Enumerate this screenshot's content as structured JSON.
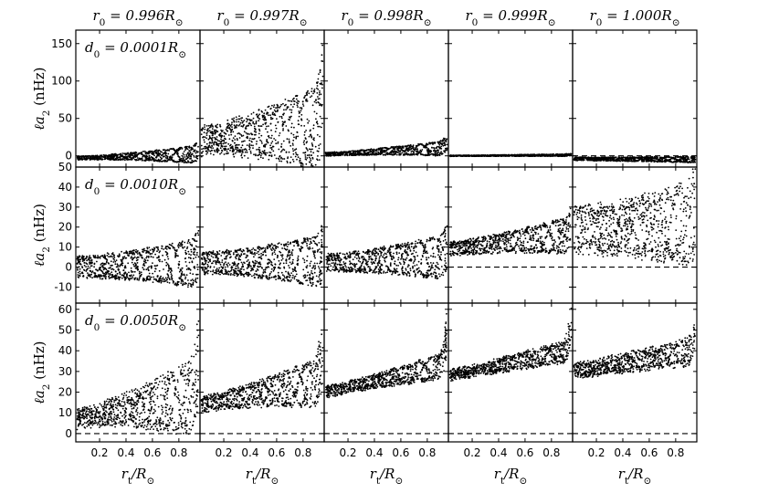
{
  "chart_data": {
    "type": "scatter",
    "layout": "3 rows x 5 columns grid of scatter panels",
    "columns": [
      {
        "title": "r_0 = 0.996R_⊙",
        "r0": 0.996
      },
      {
        "title": "r_0 = 0.997R_⊙",
        "r0": 0.997
      },
      {
        "title": "r_0 = 0.998R_⊙",
        "r0": 0.998
      },
      {
        "title": "r_0 = 0.999R_⊙",
        "r0": 0.999
      },
      {
        "title": "r_0 = 1.000R_⊙",
        "r0": 1.0
      }
    ],
    "rows": [
      {
        "annotation": "d_0 = 0.0001R_⊙",
        "d0": 0.0001,
        "ylabel": "ℓa_2 (nHz)",
        "ylim": [
          -15,
          168
        ],
        "yticks": [
          0,
          50,
          100,
          150
        ]
      },
      {
        "annotation": "d_0 = 0.0010R_⊙",
        "d0": 0.001,
        "ylabel": "ℓa_2 (nHz)",
        "ylim": [
          -18,
          50
        ],
        "yticks": [
          -10,
          0,
          10,
          20,
          30,
          40,
          50
        ]
      },
      {
        "annotation": "d_0 = 0.0050R_⊙",
        "d0": 0.005,
        "ylabel": "ℓa_2 (nHz)",
        "ylim": [
          -4,
          63
        ],
        "yticks": [
          0,
          10,
          20,
          30,
          40,
          50,
          60
        ]
      }
    ],
    "xlabel": "r_t/R_⊙",
    "xlim": [
      0.02,
      0.96
    ],
    "xticks": [
      0.2,
      0.4,
      0.6,
      0.8
    ],
    "reference_line": {
      "y": 0,
      "style": "dashed",
      "shown_in": [
        [
          0,
          4
        ],
        [
          1,
          3
        ],
        [
          1,
          4
        ],
        [
          2,
          0
        ],
        [
          2,
          1
        ],
        [
          2,
          2
        ],
        [
          2,
          3
        ],
        [
          2,
          4
        ]
      ]
    },
    "panels": [
      [
        {
          "base_start": -3,
          "base_end": 2,
          "amp_start": 2,
          "amp_end": 12,
          "peak": 15,
          "spread": 3
        },
        {
          "base_start": 20,
          "base_end": 38,
          "amp_start": 15,
          "amp_end": 55,
          "peak": 150,
          "spread": 35
        },
        {
          "base_start": 2,
          "base_end": 10,
          "amp_start": 2,
          "amp_end": 10,
          "peak": 25,
          "spread": 3
        },
        {
          "base_start": 0,
          "base_end": 1,
          "amp_start": 0.5,
          "amp_end": 1.5,
          "peak": 3,
          "spread": 1
        },
        {
          "base_start": -4,
          "base_end": -5,
          "amp_start": 2,
          "amp_end": 4,
          "peak": -3,
          "spread": 2
        }
      ],
      [
        {
          "base_start": 0,
          "base_end": 2,
          "amp_start": 5,
          "amp_end": 12,
          "peak": 16,
          "spread": 4
        },
        {
          "base_start": 2,
          "base_end": 3,
          "amp_start": 5,
          "amp_end": 13,
          "peak": 17,
          "spread": 4
        },
        {
          "base_start": 2,
          "base_end": 5,
          "amp_start": 4,
          "amp_end": 11,
          "peak": 17,
          "spread": 4
        },
        {
          "base_start": 9,
          "base_end": 16,
          "amp_start": 3,
          "amp_end": 9,
          "peak": 27,
          "spread": 4
        },
        {
          "base_start": 18,
          "base_end": 22,
          "amp_start": 10,
          "amp_end": 20,
          "peak": 44,
          "spread": 15
        }
      ],
      [
        {
          "base_start": 7,
          "base_end": 18,
          "amp_start": 3,
          "amp_end": 18,
          "peak": 54,
          "spread": 12
        },
        {
          "base_start": 14,
          "base_end": 25,
          "amp_start": 3,
          "amp_end": 12,
          "peak": 55,
          "spread": 6
        },
        {
          "base_start": 20,
          "base_end": 33,
          "amp_start": 2,
          "amp_end": 6,
          "peak": 58,
          "spread": 5
        },
        {
          "base_start": 28,
          "base_end": 40,
          "amp_start": 2,
          "amp_end": 5,
          "peak": 58,
          "spread": 6
        },
        {
          "base_start": 30,
          "base_end": 40,
          "amp_start": 3,
          "amp_end": 6,
          "peak": 52,
          "spread": 8
        }
      ]
    ]
  }
}
